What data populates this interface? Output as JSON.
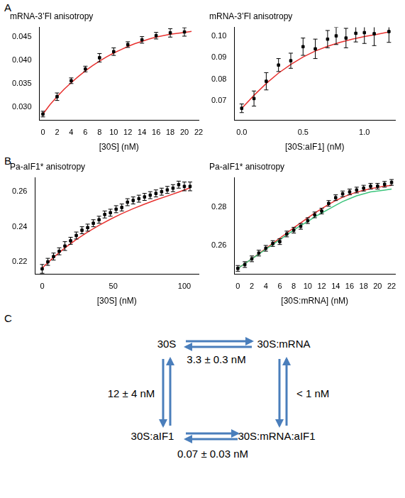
{
  "panel_labels": [
    "A",
    "B",
    "C"
  ],
  "chart_data": [
    {
      "type": "scatter",
      "title": "mRNA-3’Fl anisotropy",
      "x_label": "[30S] (nM)",
      "grid": false,
      "xlim": [
        -0.5,
        22
      ],
      "xticks": [
        0,
        2,
        4,
        6,
        8,
        10,
        12,
        14,
        16,
        18,
        20,
        22
      ],
      "ylim": [
        0.0272,
        0.047
      ],
      "yticks": [
        {
          "value": 0.03,
          "label": "0.030"
        },
        0.035,
        {
          "value": 0.04,
          "label": "0.040"
        },
        0.045
      ],
      "series": [
        {
          "type": "scatter",
          "marker": "square",
          "color": "#000000",
          "x": [
            0,
            2,
            4,
            6,
            8,
            10,
            12,
            14,
            16,
            18,
            20
          ],
          "values": [
            0.0285,
            0.0322,
            0.0356,
            0.0381,
            0.0405,
            0.0418,
            0.0433,
            0.0443,
            0.0452,
            0.0458,
            0.046
          ],
          "errors": [
            0.0006,
            0.0008,
            0.0006,
            0.0006,
            0.0009,
            0.0008,
            0.0006,
            0.0007,
            0.0007,
            0.0009,
            0.0009
          ]
        },
        {
          "type": "line",
          "color": "#e8312f",
          "x": [
            0,
            1,
            2,
            3,
            4,
            5,
            6,
            7,
            8,
            9,
            10,
            11,
            12,
            13,
            14,
            15,
            16,
            17,
            18,
            19,
            20,
            21
          ],
          "values": [
            0.0285,
            0.0305,
            0.0322,
            0.0338,
            0.0352,
            0.0365,
            0.0377,
            0.0388,
            0.0398,
            0.0407,
            0.0415,
            0.0422,
            0.0429,
            0.0435,
            0.044,
            0.0445,
            0.0449,
            0.0452,
            0.0455,
            0.0457,
            0.0459,
            0.0461
          ]
        }
      ]
    },
    {
      "type": "scatter",
      "title": "mRNA-3’Fl anisotropy",
      "x_label": "[30S:aIF1] (nM)",
      "grid": false,
      "xlim": [
        -0.06,
        1.25
      ],
      "xticks": [
        {
          "value": 0,
          "label": "0.0"
        },
        0.5,
        {
          "value": 1,
          "label": "1.0"
        }
      ],
      "ylim": [
        0.061,
        0.104
      ],
      "yticks": [
        0.07,
        0.08,
        0.09,
        {
          "value": 0.1,
          "label": "0.10"
        }
      ],
      "series": [
        {
          "type": "scatter",
          "marker": "square",
          "color": "#000000",
          "x": [
            0,
            0.1,
            0.2,
            0.3,
            0.4,
            0.5,
            0.6,
            0.7,
            0.77,
            0.85,
            0.93,
            1.0,
            1.08,
            1.2
          ],
          "values": [
            0.0665,
            0.071,
            0.079,
            0.0865,
            0.0885,
            0.095,
            0.094,
            0.0985,
            0.1,
            0.099,
            0.1012,
            0.1015,
            0.101,
            0.102
          ],
          "errors": [
            0.002,
            0.0035,
            0.004,
            0.003,
            0.0035,
            0.004,
            0.0045,
            0.004,
            0.004,
            0.0045,
            0.004,
            0.005,
            0.0055,
            0.005
          ]
        },
        {
          "type": "line",
          "color": "#e8312f",
          "x": [
            0,
            0.1,
            0.2,
            0.3,
            0.4,
            0.5,
            0.6,
            0.7,
            0.8,
            0.9,
            1.0,
            1.1,
            1.2
          ],
          "values": [
            0.0665,
            0.0725,
            0.078,
            0.0828,
            0.0868,
            0.0902,
            0.093,
            0.0952,
            0.097,
            0.0985,
            0.0997,
            0.1007,
            0.1018
          ]
        }
      ]
    },
    {
      "type": "scatter",
      "title": "Pa-aIF1* anisotropy",
      "x_label": "[30S] (nM)",
      "grid": false,
      "xlim": [
        -5,
        110
      ],
      "xticks": [
        0,
        50,
        100
      ],
      "ylim": [
        0.213,
        0.268
      ],
      "yticks": [
        0.22,
        0.24,
        0.26
      ],
      "series": [
        {
          "type": "scatter",
          "marker": "square",
          "color": "#000000",
          "x": [
            0,
            4,
            8,
            12,
            16,
            20,
            24,
            28,
            32,
            36,
            40,
            44,
            48,
            52,
            56,
            60,
            64,
            68,
            72,
            76,
            80,
            84,
            88,
            92,
            96,
            100,
            104
          ],
          "values": [
            0.216,
            0.22,
            0.223,
            0.226,
            0.229,
            0.232,
            0.235,
            0.238,
            0.2395,
            0.242,
            0.244,
            0.247,
            0.248,
            0.25,
            0.251,
            0.254,
            0.255,
            0.256,
            0.257,
            0.258,
            0.259,
            0.26,
            0.261,
            0.262,
            0.264,
            0.263,
            0.263
          ],
          "errors": [
            0.0025,
            0.002,
            0.002,
            0.002,
            0.0025,
            0.002,
            0.002,
            0.002,
            0.002,
            0.002,
            0.002,
            0.002,
            0.002,
            0.002,
            0.002,
            0.002,
            0.002,
            0.002,
            0.002,
            0.002,
            0.002,
            0.002,
            0.002,
            0.002,
            0.002,
            0.0025,
            0.0025
          ]
        },
        {
          "type": "line",
          "color": "#e8312f",
          "x": [
            0,
            8,
            16,
            24,
            32,
            40,
            48,
            56,
            64,
            72,
            80,
            88,
            96,
            104
          ],
          "values": [
            0.2165,
            0.2225,
            0.228,
            0.2327,
            0.237,
            0.2408,
            0.2443,
            0.2475,
            0.2503,
            0.2529,
            0.2553,
            0.2575,
            0.2598,
            0.2622
          ]
        }
      ]
    },
    {
      "type": "scatter",
      "title": "Pa-aIF1* anisotropy",
      "x_label": "[30S:mRNA] (nM)",
      "grid": false,
      "xlim": [
        -0.5,
        22.5
      ],
      "xticks": [
        0,
        2,
        4,
        6,
        8,
        10,
        12,
        14,
        16,
        18,
        20,
        22
      ],
      "ylim": [
        0.245,
        0.2955
      ],
      "yticks": [
        0.26,
        0.28
      ],
      "series": [
        {
          "type": "line",
          "color": "#3cc47c",
          "x": [
            0,
            1,
            2,
            3,
            4,
            5,
            6,
            7,
            8,
            9,
            10,
            11,
            12,
            13,
            14,
            15,
            16,
            17,
            18,
            19,
            20,
            21,
            22
          ],
          "values": [
            0.248,
            0.2505,
            0.253,
            0.2555,
            0.258,
            0.2605,
            0.263,
            0.2655,
            0.268,
            0.2705,
            0.2725,
            0.275,
            0.277,
            0.279,
            0.281,
            0.283,
            0.2845,
            0.286,
            0.287,
            0.288,
            0.2885,
            0.289,
            0.2895
          ]
        },
        {
          "type": "line",
          "color": "#e8312f",
          "x": [
            0,
            1,
            2,
            3,
            4,
            5,
            6,
            7,
            8,
            9,
            10,
            11,
            12,
            13,
            14,
            15,
            16,
            17,
            18,
            19,
            20,
            21,
            22
          ],
          "values": [
            0.248,
            0.2505,
            0.253,
            0.2557,
            0.2584,
            0.2611,
            0.2638,
            0.2665,
            0.2692,
            0.2718,
            0.2744,
            0.2769,
            0.2793,
            0.2815,
            0.2835,
            0.2852,
            0.2867,
            0.2879,
            0.2889,
            0.2897,
            0.2904,
            0.291,
            0.2915
          ]
        },
        {
          "type": "scatter",
          "marker": "square",
          "color": "#000000",
          "x": [
            0,
            1,
            2,
            3,
            4,
            5,
            6,
            7,
            8,
            9,
            10,
            11,
            12,
            13,
            14,
            15,
            16,
            17,
            18,
            19,
            20,
            21,
            22
          ],
          "values": [
            0.248,
            0.25,
            0.253,
            0.256,
            0.2585,
            0.261,
            0.262,
            0.266,
            0.268,
            0.27,
            0.273,
            0.276,
            0.278,
            0.282,
            0.285,
            0.287,
            0.288,
            0.289,
            0.29,
            0.291,
            0.291,
            0.292,
            0.293
          ],
          "errors": [
            0.0015,
            0.0015,
            0.0015,
            0.0015,
            0.0015,
            0.0015,
            0.0015,
            0.0015,
            0.0015,
            0.0015,
            0.0015,
            0.0015,
            0.0015,
            0.0015,
            0.0015,
            0.0015,
            0.0015,
            0.0015,
            0.0015,
            0.0015,
            0.0015,
            0.0015,
            0.0015
          ]
        }
      ]
    }
  ],
  "diagram": {
    "nodes": [
      "30S",
      "30S:mRNA",
      "30S:aIF1",
      "30S:mRNA:aIF1"
    ],
    "edges": [
      {
        "from": 0,
        "to": 1,
        "label": "3.3 ± 0.3 nM"
      },
      {
        "from": 0,
        "to": 2,
        "label": "12 ± 4 nM"
      },
      {
        "from": 1,
        "to": 3,
        "label": "< 1 nM"
      },
      {
        "from": 2,
        "to": 3,
        "label": "0.07 ± 0.03 nM"
      }
    ]
  }
}
